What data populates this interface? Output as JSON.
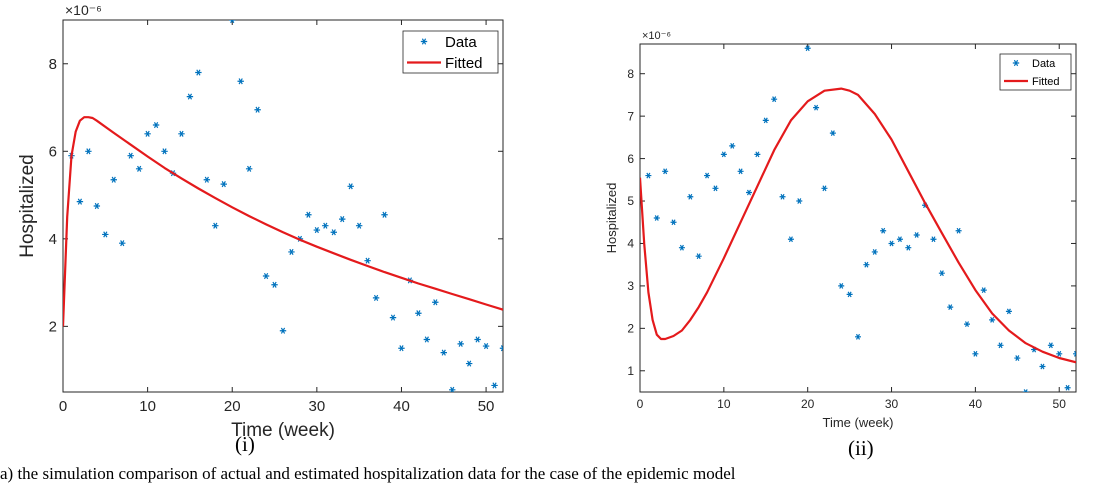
{
  "captions": [
    "(i)",
    "(ii)"
  ],
  "bottom_text": "a) the simulation comparison of actual and estimated hospitalization data for the case of the epidemic model",
  "chart_data": [
    {
      "type": "scatter",
      "panel": "(i)",
      "xlabel": "Time (week)",
      "ylabel": "Hospitalized",
      "exponent_label": "×10⁻⁶",
      "xlim": [
        0,
        52
      ],
      "ylim": [
        0.5,
        9.0
      ],
      "xticks": [
        0,
        10,
        20,
        30,
        40,
        50
      ],
      "yticks": [
        2,
        4,
        6,
        8
      ],
      "legend": {
        "position": "top-right",
        "entries": [
          "Data",
          "Fitted"
        ]
      },
      "series": [
        {
          "name": "Data",
          "kind": "markers",
          "color": "#0072BD",
          "x": [
            1,
            2,
            3,
            4,
            5,
            6,
            7,
            8,
            9,
            10,
            11,
            12,
            13,
            14,
            15,
            16,
            17,
            18,
            19,
            20,
            21,
            22,
            23,
            24,
            25,
            26,
            27,
            28,
            29,
            30,
            31,
            32,
            33,
            34,
            35,
            36,
            37,
            38,
            39,
            40,
            41,
            42,
            43,
            44,
            45,
            46,
            47,
            48,
            49,
            50,
            51,
            52
          ],
          "y": [
            5.9,
            4.85,
            6.0,
            4.75,
            4.1,
            5.35,
            3.9,
            5.9,
            5.6,
            6.4,
            6.6,
            6.0,
            5.5,
            6.4,
            7.25,
            7.8,
            5.35,
            4.3,
            5.25,
            9.0,
            7.6,
            5.6,
            6.95,
            3.15,
            2.95,
            1.9,
            3.7,
            4.0,
            4.55,
            4.2,
            4.3,
            4.15,
            4.45,
            5.2,
            4.3,
            3.5,
            2.65,
            4.55,
            2.2,
            1.5,
            3.05,
            2.3,
            1.7,
            2.55,
            1.4,
            0.55,
            1.6,
            1.15,
            1.7,
            1.55,
            0.65,
            1.5
          ]
        },
        {
          "name": "Fitted",
          "kind": "line",
          "color": "#E41A1C",
          "x": [
            0,
            0.5,
            1,
            1.5,
            2,
            2.5,
            3,
            3.5,
            4,
            6,
            8,
            10,
            12,
            14,
            16,
            18,
            20,
            22,
            24,
            26,
            28,
            30,
            32,
            34,
            36,
            38,
            40,
            42,
            44,
            46,
            48,
            50,
            52
          ],
          "y": [
            2.0,
            4.5,
            5.9,
            6.45,
            6.7,
            6.78,
            6.78,
            6.76,
            6.7,
            6.42,
            6.15,
            5.88,
            5.62,
            5.38,
            5.15,
            4.93,
            4.72,
            4.52,
            4.33,
            4.15,
            3.98,
            3.82,
            3.67,
            3.52,
            3.38,
            3.24,
            3.11,
            2.98,
            2.86,
            2.74,
            2.62,
            2.5,
            2.38
          ]
        }
      ]
    },
    {
      "type": "scatter",
      "panel": "(ii)",
      "xlabel": "Time (week)",
      "ylabel": "Hospitalized",
      "exponent_label": "×10⁻⁶",
      "xlim": [
        0,
        52
      ],
      "ylim": [
        0.5,
        8.7
      ],
      "xticks": [
        0,
        10,
        20,
        30,
        40,
        50
      ],
      "yticks": [
        1,
        2,
        3,
        4,
        5,
        6,
        7,
        8
      ],
      "legend": {
        "position": "top-right",
        "entries": [
          "Data",
          "Fitted"
        ]
      },
      "series": [
        {
          "name": "Data",
          "kind": "markers",
          "color": "#0072BD",
          "x": [
            1,
            2,
            3,
            4,
            5,
            6,
            7,
            8,
            9,
            10,
            11,
            12,
            13,
            14,
            15,
            16,
            17,
            18,
            19,
            20,
            21,
            22,
            23,
            24,
            25,
            26,
            27,
            28,
            29,
            30,
            31,
            32,
            33,
            34,
            35,
            36,
            37,
            38,
            39,
            40,
            41,
            42,
            43,
            44,
            45,
            46,
            47,
            48,
            49,
            50,
            51,
            52
          ],
          "y": [
            5.6,
            4.6,
            5.7,
            4.5,
            3.9,
            5.1,
            3.7,
            5.6,
            5.3,
            6.1,
            6.3,
            5.7,
            5.2,
            6.1,
            6.9,
            7.4,
            5.1,
            4.1,
            5.0,
            8.6,
            7.2,
            5.3,
            6.6,
            3.0,
            2.8,
            1.8,
            3.5,
            3.8,
            4.3,
            4.0,
            4.1,
            3.9,
            4.2,
            4.9,
            4.1,
            3.3,
            2.5,
            4.3,
            2.1,
            1.4,
            2.9,
            2.2,
            1.6,
            2.4,
            1.3,
            0.5,
            1.5,
            1.1,
            1.6,
            1.4,
            0.6,
            1.4
          ]
        },
        {
          "name": "Fitted",
          "kind": "line",
          "color": "#E41A1C",
          "x": [
            0,
            0.5,
            1,
            1.5,
            2,
            2.5,
            3,
            4,
            5,
            6,
            7,
            8,
            10,
            12,
            14,
            16,
            18,
            20,
            22,
            24,
            25,
            26,
            28,
            30,
            32,
            34,
            36,
            38,
            40,
            42,
            44,
            46,
            48,
            50,
            52
          ],
          "y": [
            5.55,
            4.0,
            2.85,
            2.2,
            1.85,
            1.75,
            1.75,
            1.82,
            1.95,
            2.2,
            2.5,
            2.85,
            3.65,
            4.5,
            5.35,
            6.2,
            6.9,
            7.35,
            7.6,
            7.65,
            7.6,
            7.5,
            7.05,
            6.45,
            5.7,
            4.95,
            4.25,
            3.55,
            2.9,
            2.35,
            1.95,
            1.65,
            1.45,
            1.3,
            1.2
          ]
        }
      ]
    }
  ]
}
